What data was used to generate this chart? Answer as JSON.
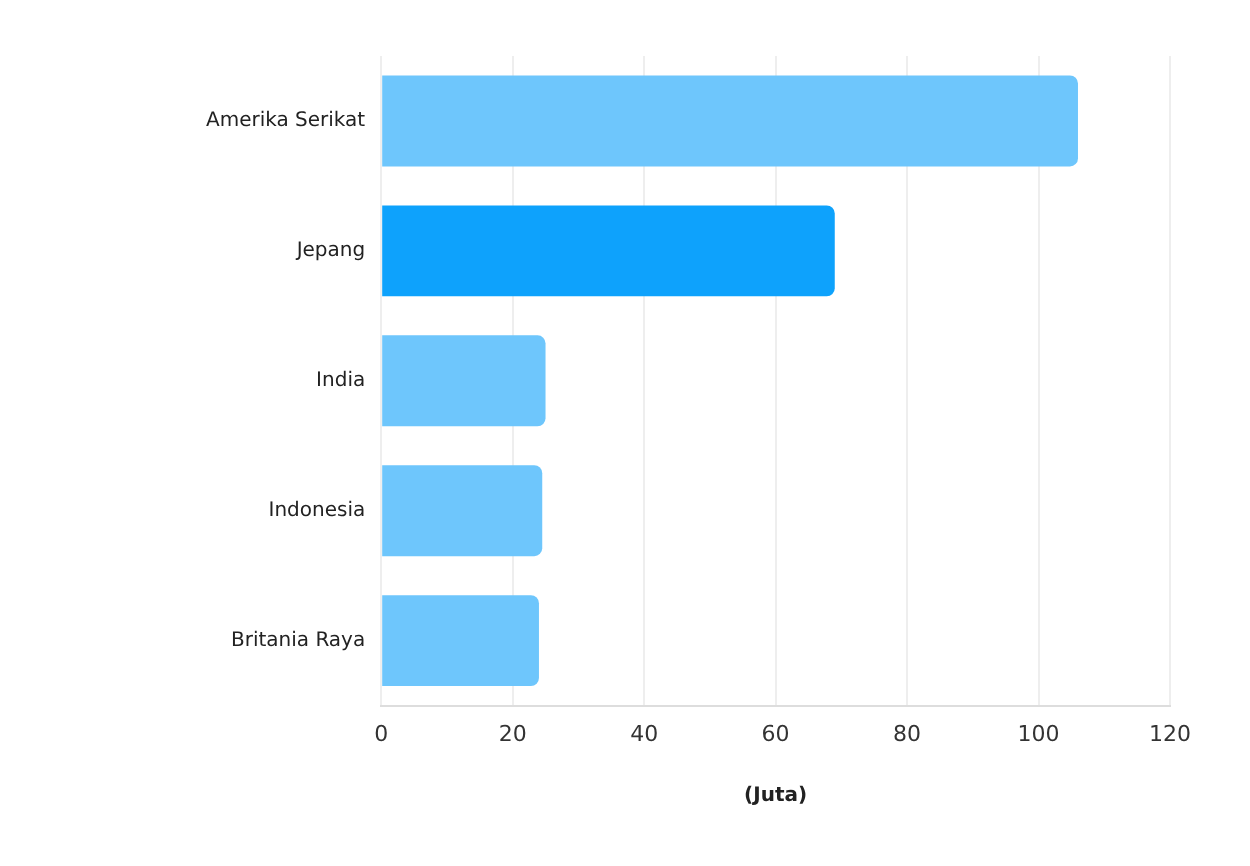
{
  "chart_data": {
    "type": "bar",
    "orientation": "horizontal",
    "xlabel": "(Juta)",
    "categories": [
      "Amerika Serikat",
      "Jepang",
      "India",
      "Indonesia",
      "Britania Raya"
    ],
    "values": [
      106,
      69,
      25,
      24.5,
      24
    ],
    "colors": [
      "#6ec6fc",
      "#0ea2fc",
      "#6ec6fc",
      "#6ec6fc",
      "#6ec6fc"
    ],
    "xlim": [
      0,
      120
    ],
    "xticks": [
      0,
      20,
      40,
      60,
      80,
      100,
      120
    ],
    "grid": "x",
    "legend": false
  }
}
